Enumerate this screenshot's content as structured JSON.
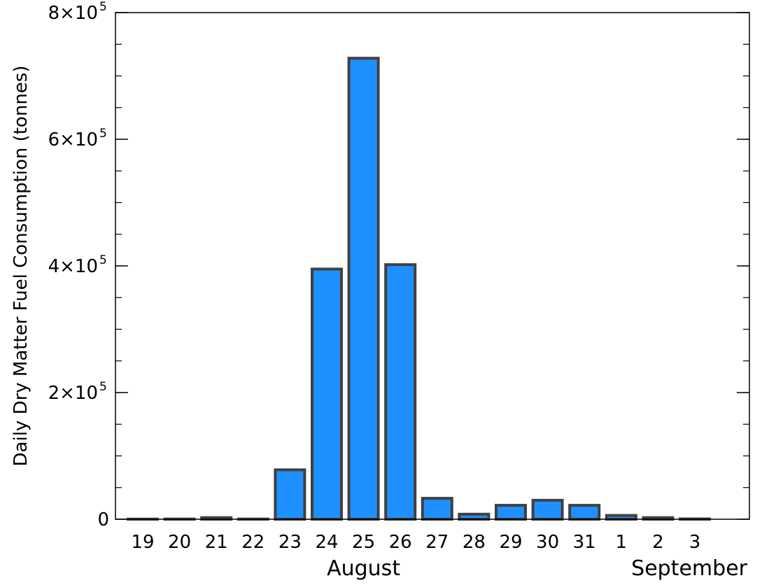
{
  "chart_data": {
    "type": "bar",
    "title": "",
    "ylabel": "Daily Dry Matter Fuel Consumption (tonnes)",
    "xlabel": "",
    "categories": [
      "19",
      "20",
      "21",
      "22",
      "23",
      "24",
      "25",
      "26",
      "27",
      "28",
      "29",
      "30",
      "31",
      "1",
      "2",
      "3"
    ],
    "values": [
      200,
      300,
      2500,
      300,
      78000,
      395000,
      728000,
      402000,
      33000,
      8000,
      22000,
      30000,
      22000,
      6000,
      2500,
      500
    ],
    "ylim": [
      0,
      800000
    ],
    "y_ticks": [
      {
        "value": 0,
        "base": "0",
        "exp": ""
      },
      {
        "value": 200000,
        "base": "2×10",
        "exp": "5"
      },
      {
        "value": 400000,
        "base": "4×10",
        "exp": "5"
      },
      {
        "value": 600000,
        "base": "6×10",
        "exp": "5"
      },
      {
        "value": 800000,
        "base": "8×10",
        "exp": "5"
      }
    ],
    "y_minor_step": 50000,
    "month_labels": [
      {
        "text": "August",
        "start_index": 0,
        "end_index": 12
      },
      {
        "text": "September",
        "start_index": 13,
        "end_index": 15
      }
    ],
    "bar_color": "#1e90ff",
    "bar_edge_color": "#404040",
    "grid": false,
    "legend": "none"
  }
}
